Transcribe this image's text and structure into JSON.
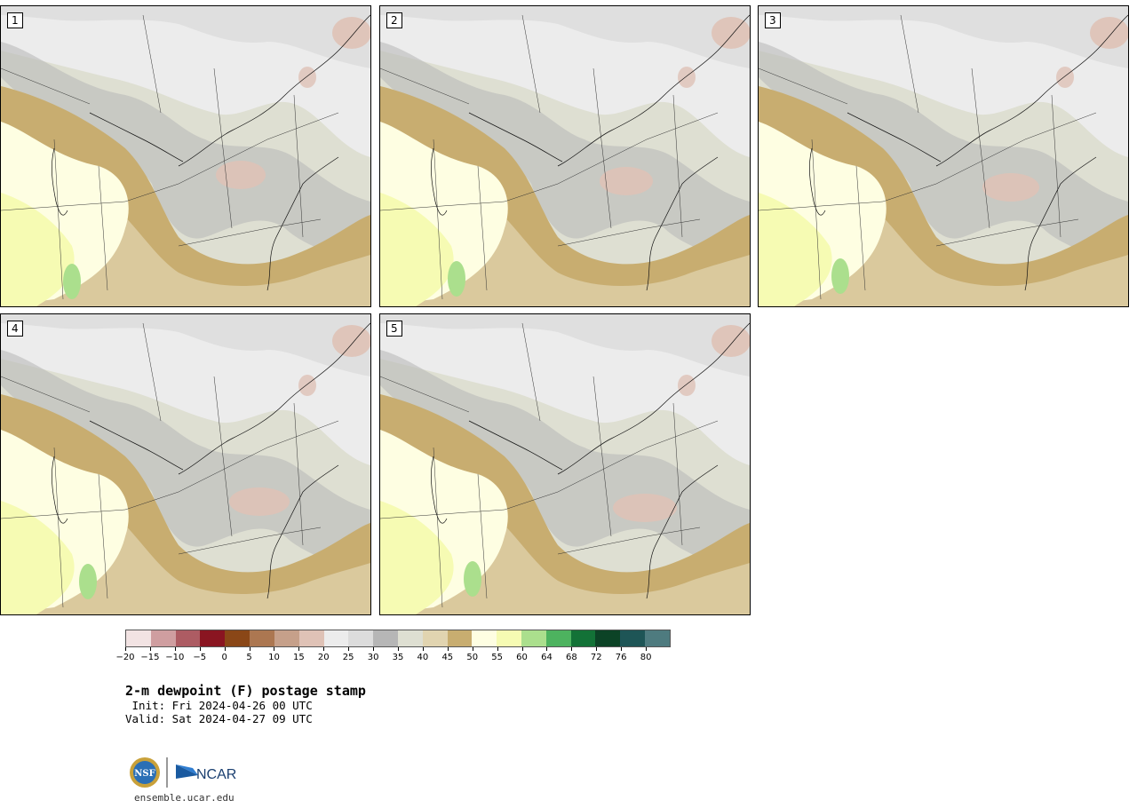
{
  "panels": [
    {
      "label": "1"
    },
    {
      "label": "2"
    },
    {
      "label": "3"
    },
    {
      "label": "4"
    },
    {
      "label": "5"
    }
  ],
  "colorbar": {
    "colors": [
      "#f2e3e3",
      "#cf9ea0",
      "#ad5c63",
      "#8a1521",
      "#8a4717",
      "#ac7751",
      "#c6a08a",
      "#dfc2b6",
      "#ececec",
      "#dcdcdc",
      "#b6b6b6",
      "#dedfd2",
      "#e1d4b0",
      "#c8ad70",
      "#fefee2",
      "#f6fbb3",
      "#abdf8d",
      "#4db35f",
      "#137237",
      "#0c4326",
      "#1e5556",
      "#4e7b7f"
    ],
    "tick_labels": [
      "−20",
      "−15",
      "−10",
      "−5",
      "0",
      "5",
      "10",
      "15",
      "20",
      "25",
      "30",
      "35",
      "40",
      "45",
      "50",
      "55",
      "60",
      "64",
      "68",
      "72",
      "76",
      "80"
    ]
  },
  "title": "2-m dewpoint (F) postage stamp",
  "init_line": " Init: Fri 2024-04-26 00 UTC",
  "valid_line": "Valid: Sat 2024-04-27 09 UTC",
  "logo": {
    "nsf_text": "NSF",
    "ncar_text": "NCAR"
  },
  "url": "ensemble.ucar.edu"
}
